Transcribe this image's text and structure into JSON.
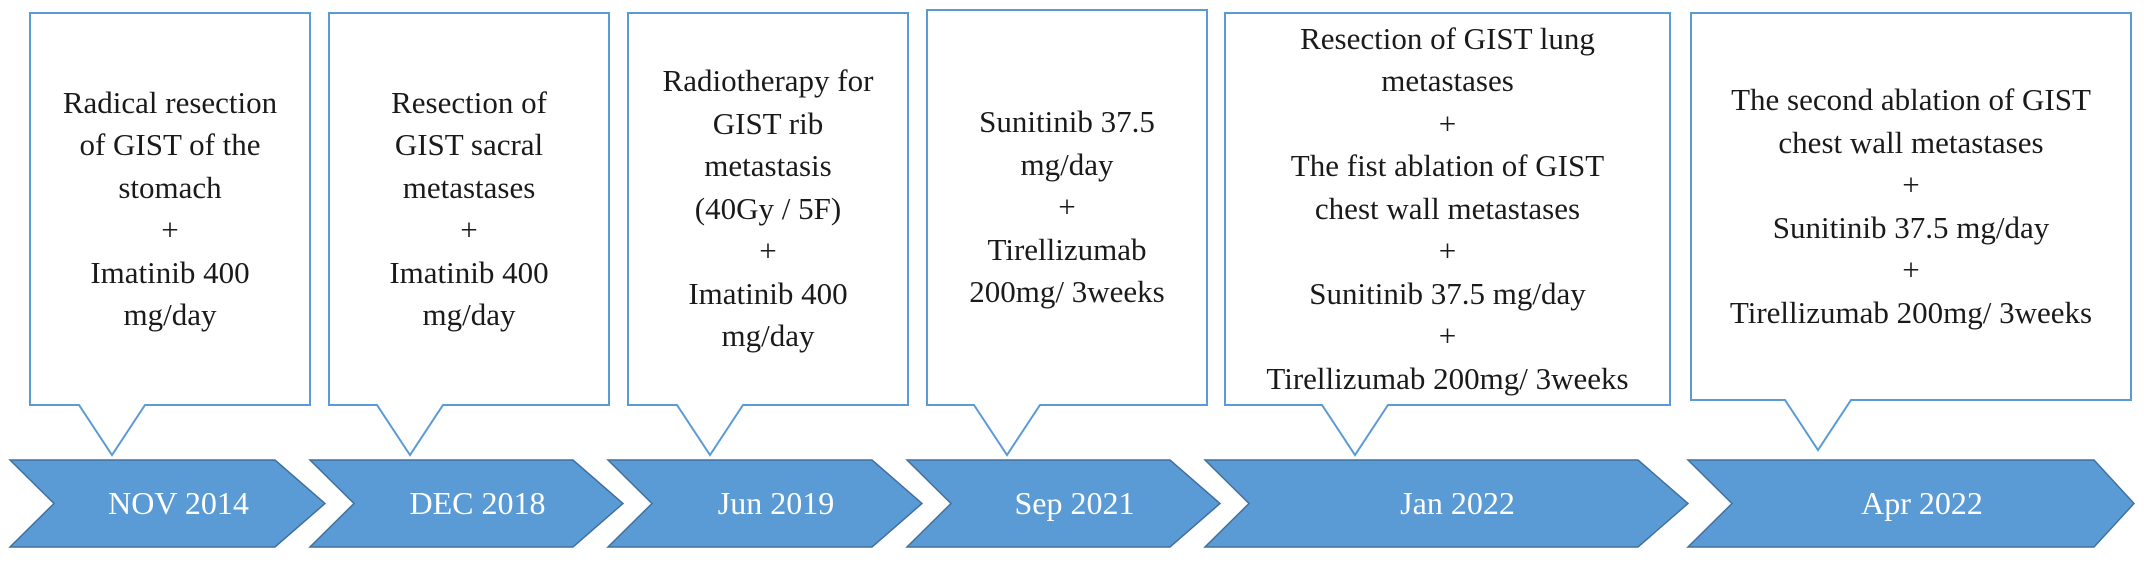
{
  "events": [
    {
      "date": "NOV 2014",
      "lines": [
        "Radical resection",
        "of GIST of the",
        "stomach",
        "+",
        "Imatinib 400",
        "mg/day"
      ]
    },
    {
      "date": "DEC 2018",
      "lines": [
        "Resection of",
        "GIST sacral",
        "metastases",
        "+",
        "Imatinib 400",
        "mg/day"
      ]
    },
    {
      "date": "Jun 2019",
      "lines": [
        "Radiotherapy for",
        "GIST rib",
        "metastasis",
        "(40Gy / 5F)",
        "+",
        "Imatinib 400",
        "mg/day"
      ]
    },
    {
      "date": "Sep 2021",
      "lines": [
        "Sunitinib 37.5",
        "mg/day",
        "+",
        "Tirellizumab",
        "200mg/ 3weeks"
      ]
    },
    {
      "date": "Jan 2022",
      "lines": [
        "Resection of  GIST lung",
        "metastases",
        "+",
        "The fist ablation of GIST",
        "chest wall metastases",
        "+",
        "Sunitinib 37.5 mg/day",
        "+",
        "Tirellizumab 200mg/ 3weeks"
      ]
    },
    {
      "date": "Apr 2022",
      "lines": [
        "The second ablation of GIST",
        "chest wall metastases",
        "+",
        "Sunitinib 37.5 mg/day",
        "+",
        "Tirellizumab 200mg/ 3weeks"
      ]
    }
  ]
}
